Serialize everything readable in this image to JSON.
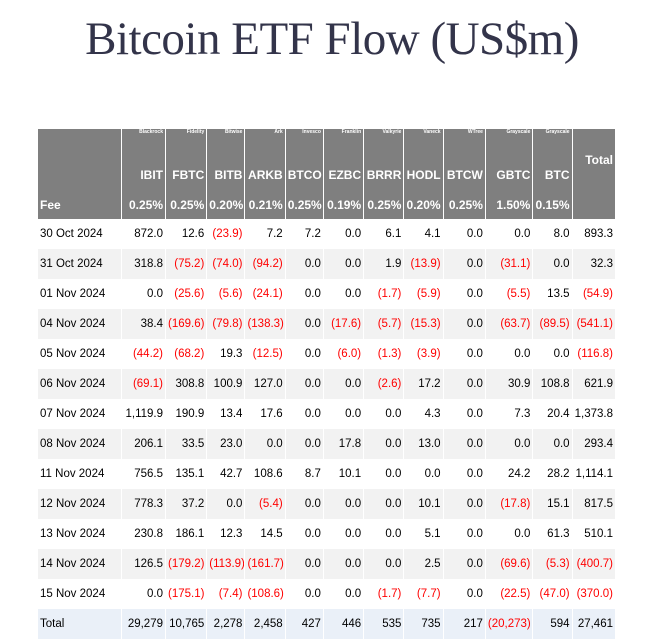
{
  "title": "Bitcoin ETF Flow (US$m)",
  "issuers": [
    "Blackrock",
    "Fidelity",
    "Bitwise",
    "Ark",
    "Invesco",
    "Franklin",
    "Valkyrie",
    "Vaneck",
    "WTree",
    "Grayscale",
    "Grayscale"
  ],
  "tickers": [
    "IBIT",
    "FBTC",
    "BITB",
    "ARKB",
    "BTCO",
    "EZBC",
    "BRRR",
    "HODL",
    "BTCW",
    "GBTC",
    "BTC"
  ],
  "total_label": "Total",
  "fee_label": "Fee",
  "fees": [
    "0.25%",
    "0.25%",
    "0.20%",
    "0.21%",
    "0.25%",
    "0.19%",
    "0.25%",
    "0.20%",
    "0.25%",
    "1.50%",
    "0.15%"
  ],
  "rows": [
    {
      "date": "30 Oct 2024",
      "values": [
        "872.0",
        "12.6",
        "(23.9)",
        "7.2",
        "7.2",
        "0.0",
        "6.1",
        "4.1",
        "0.0",
        "0.0",
        "8.0",
        "893.3"
      ]
    },
    {
      "date": "31 Oct 2024",
      "values": [
        "318.8",
        "(75.2)",
        "(74.0)",
        "(94.2)",
        "0.0",
        "0.0",
        "1.9",
        "(13.9)",
        "0.0",
        "(31.1)",
        "0.0",
        "32.3"
      ]
    },
    {
      "date": "01 Nov 2024",
      "values": [
        "0.0",
        "(25.6)",
        "(5.6)",
        "(24.1)",
        "0.0",
        "0.0",
        "(1.7)",
        "(5.9)",
        "0.0",
        "(5.5)",
        "13.5",
        "(54.9)"
      ]
    },
    {
      "date": "04 Nov 2024",
      "values": [
        "38.4",
        "(169.6)",
        "(79.8)",
        "(138.3)",
        "0.0",
        "(17.6)",
        "(5.7)",
        "(15.3)",
        "0.0",
        "(63.7)",
        "(89.5)",
        "(541.1)"
      ]
    },
    {
      "date": "05 Nov 2024",
      "values": [
        "(44.2)",
        "(68.2)",
        "19.3",
        "(12.5)",
        "0.0",
        "(6.0)",
        "(1.3)",
        "(3.9)",
        "0.0",
        "0.0",
        "0.0",
        "(116.8)"
      ]
    },
    {
      "date": "06 Nov 2024",
      "values": [
        "(69.1)",
        "308.8",
        "100.9",
        "127.0",
        "0.0",
        "0.0",
        "(2.6)",
        "17.2",
        "0.0",
        "30.9",
        "108.8",
        "621.9"
      ]
    },
    {
      "date": "07 Nov 2024",
      "values": [
        "1,119.9",
        "190.9",
        "13.4",
        "17.6",
        "0.0",
        "0.0",
        "0.0",
        "4.3",
        "0.0",
        "7.3",
        "20.4",
        "1,373.8"
      ]
    },
    {
      "date": "08 Nov 2024",
      "values": [
        "206.1",
        "33.5",
        "23.0",
        "0.0",
        "0.0",
        "17.8",
        "0.0",
        "13.0",
        "0.0",
        "0.0",
        "0.0",
        "293.4"
      ]
    },
    {
      "date": "11 Nov 2024",
      "values": [
        "756.5",
        "135.1",
        "42.7",
        "108.6",
        "8.7",
        "10.1",
        "0.0",
        "0.0",
        "0.0",
        "24.2",
        "28.2",
        "1,114.1"
      ]
    },
    {
      "date": "12 Nov 2024",
      "values": [
        "778.3",
        "37.2",
        "0.0",
        "(5.4)",
        "0.0",
        "0.0",
        "0.0",
        "10.1",
        "0.0",
        "(17.8)",
        "15.1",
        "817.5"
      ]
    },
    {
      "date": "13 Nov 2024",
      "values": [
        "230.8",
        "186.1",
        "12.3",
        "14.5",
        "0.0",
        "0.0",
        "0.0",
        "5.1",
        "0.0",
        "0.0",
        "61.3",
        "510.1"
      ]
    },
    {
      "date": "14 Nov 2024",
      "values": [
        "126.5",
        "(179.2)",
        "(113.9)",
        "(161.7)",
        "0.0",
        "0.0",
        "0.0",
        "2.5",
        "0.0",
        "(69.6)",
        "(5.3)",
        "(400.7)"
      ]
    },
    {
      "date": "15 Nov 2024",
      "values": [
        "0.0",
        "(175.1)",
        "(7.4)",
        "(108.6)",
        "0.0",
        "0.0",
        "(1.7)",
        "(7.7)",
        "0.0",
        "(22.5)",
        "(47.0)",
        "(370.0)"
      ]
    }
  ],
  "totals": {
    "label": "Total",
    "values": [
      "29,279",
      "10,765",
      "2,278",
      "2,458",
      "427",
      "446",
      "535",
      "735",
      "217",
      "(20,273)",
      "594",
      "27,461"
    ]
  },
  "colors": {
    "header_bg": "#7f7f7f",
    "negative": "#ff0000",
    "stripe": "#f2f2f2",
    "total_bg": "#eaf0f8",
    "title": "#33344a"
  }
}
